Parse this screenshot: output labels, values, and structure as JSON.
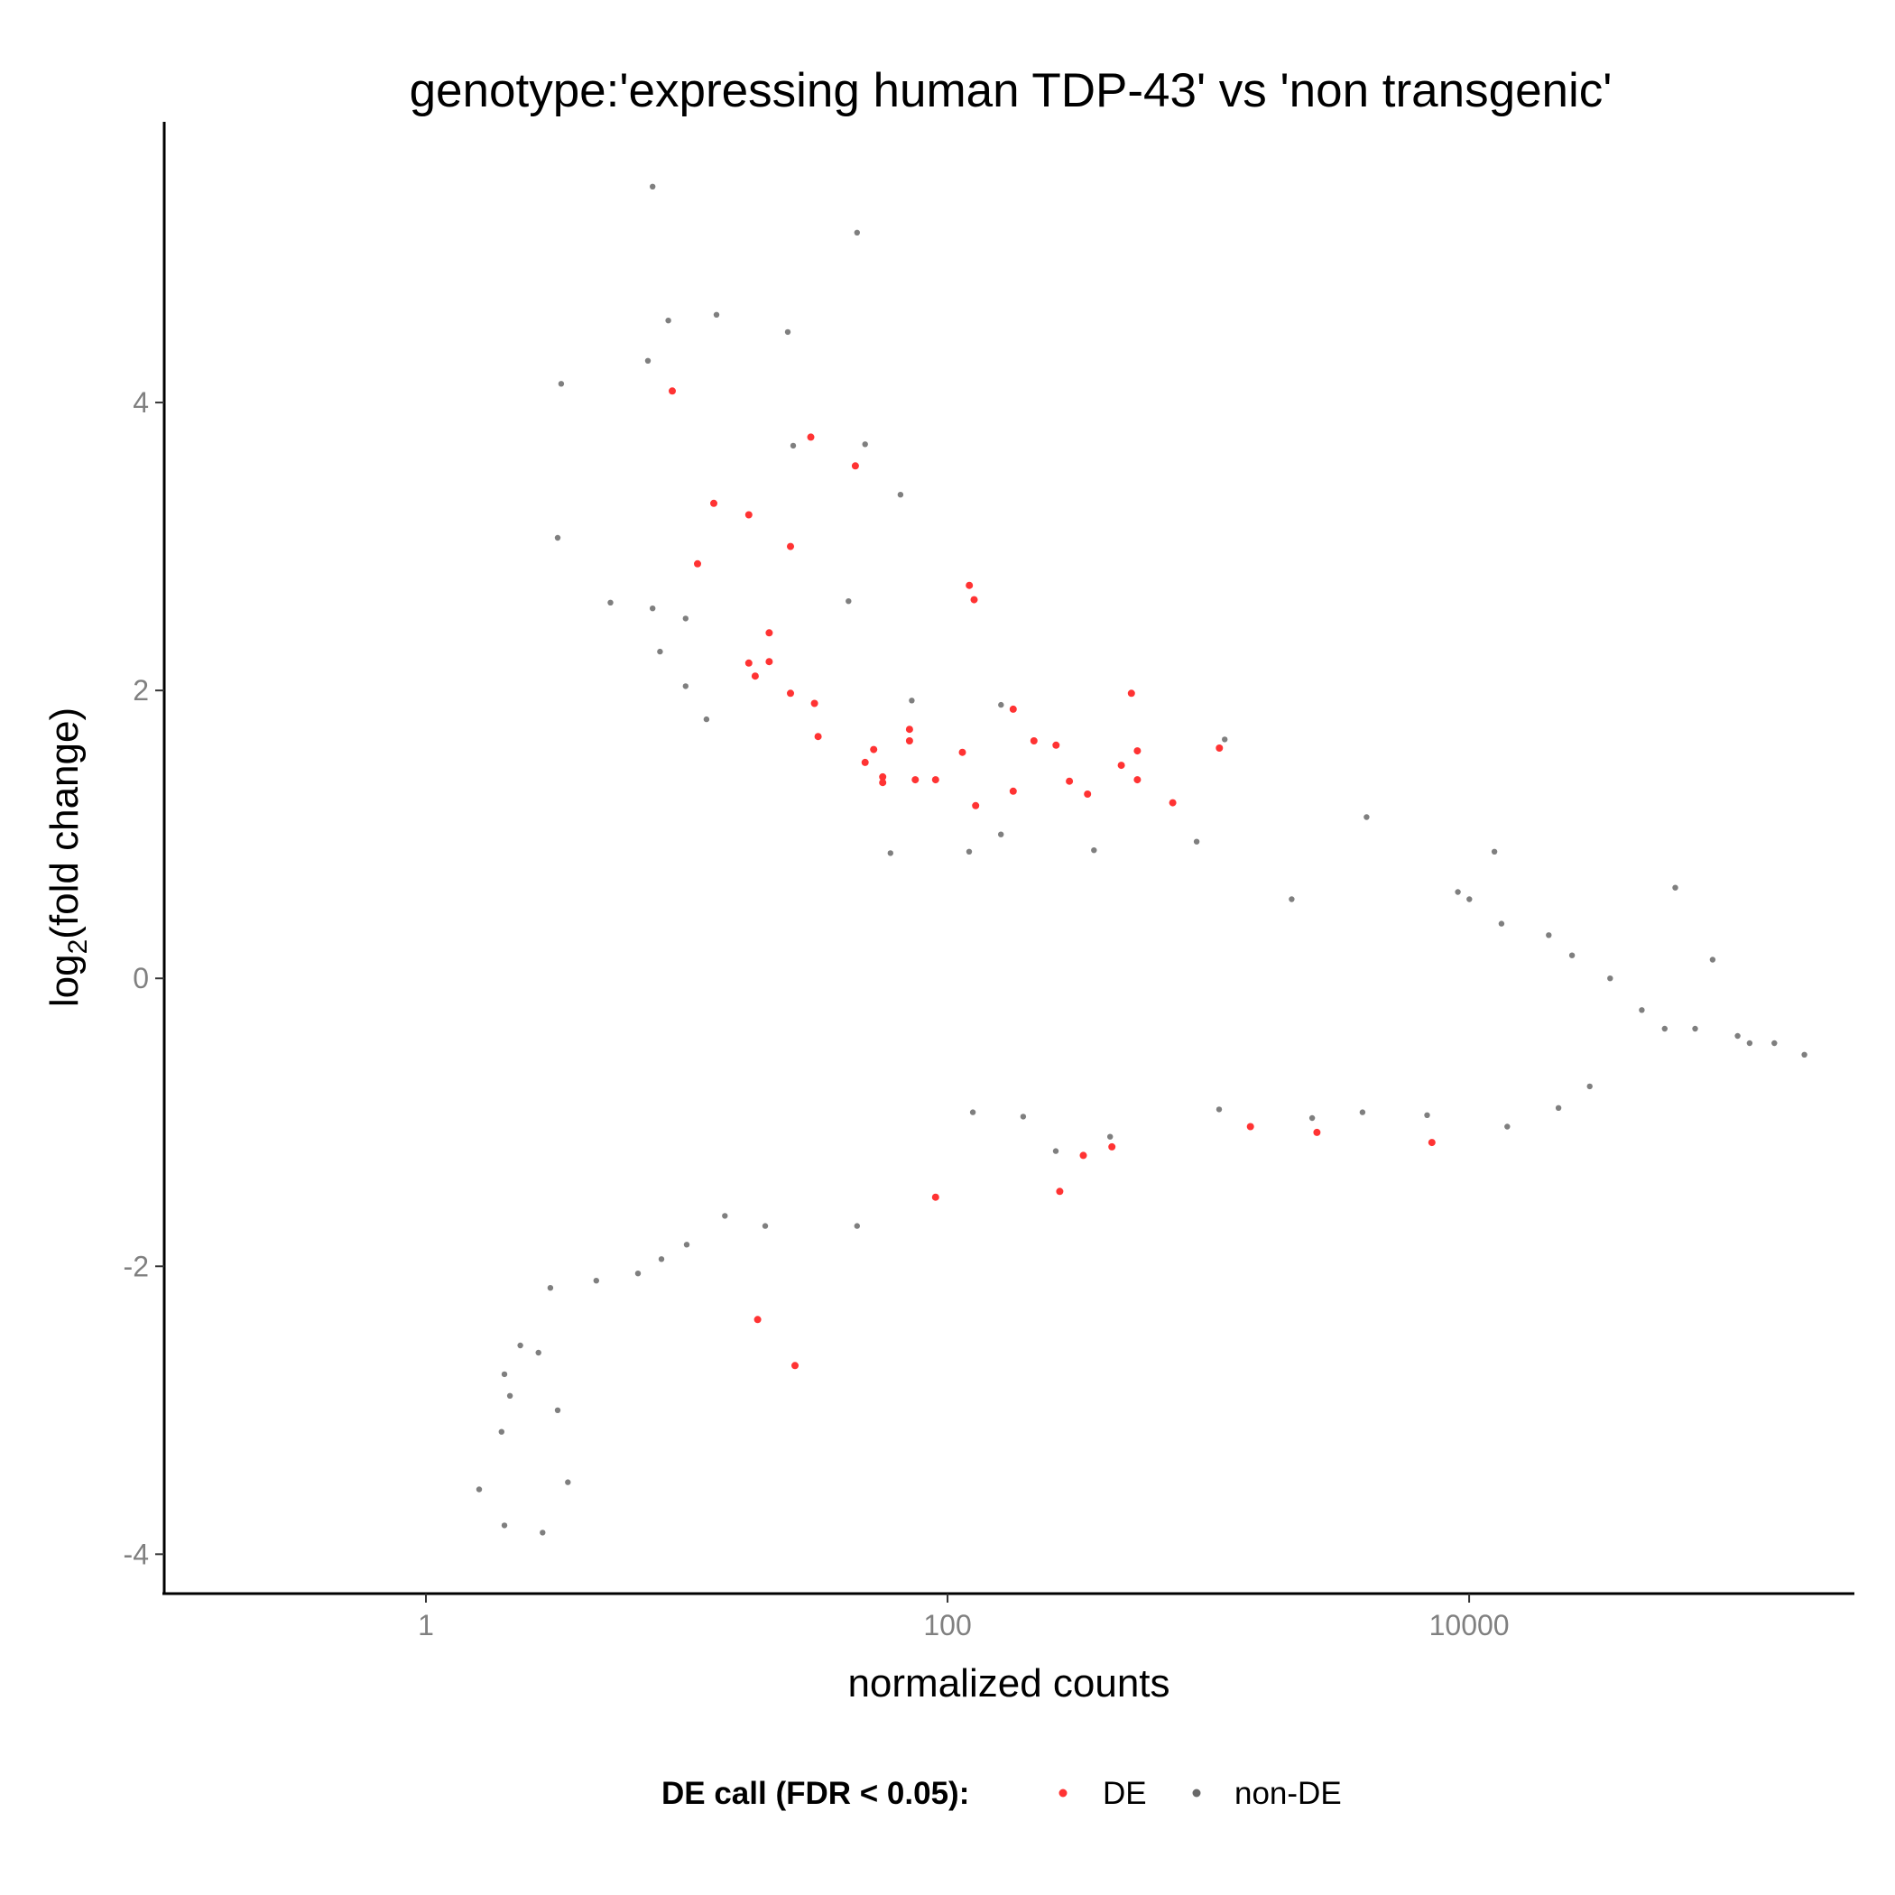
{
  "chart_data": {
    "type": "scatter",
    "title": "genotype:'expressing human TDP-43' vs 'non transgenic'",
    "xlabel": "normalized counts",
    "ylabel": "log2(fold change)",
    "x_scale": "log10",
    "xlim": [
      0.1,
      300000
    ],
    "ylim": [
      -4.28,
      5.95
    ],
    "x_ticks": [
      1,
      100,
      10000
    ],
    "x_tick_labels": [
      "1",
      "100",
      "10000"
    ],
    "y_ticks": [
      -4,
      -2,
      0,
      2,
      4
    ],
    "y_tick_labels": [
      "-4",
      "-2",
      "0",
      "2",
      "4"
    ],
    "grid": false,
    "legend": {
      "title": "DE call (FDR < 0.05):",
      "position": "bottom",
      "entries": [
        "DE",
        "non-DE"
      ]
    },
    "series": [
      {
        "name": "DE",
        "color": "#ff3333",
        "points": [
          [
            8.8,
            4.08
          ],
          [
            12.7,
            3.3
          ],
          [
            11.0,
            2.88
          ],
          [
            17.3,
            3.22
          ],
          [
            25.0,
            3.0
          ],
          [
            29.9,
            3.76
          ],
          [
            44.3,
            3.56
          ],
          [
            20.7,
            2.4
          ],
          [
            17.3,
            2.19
          ],
          [
            18.3,
            2.1
          ],
          [
            20.7,
            2.2
          ],
          [
            25.0,
            1.98
          ],
          [
            30.9,
            1.91
          ],
          [
            31.9,
            1.68
          ],
          [
            48.3,
            1.5
          ],
          [
            52.1,
            1.59
          ],
          [
            56.4,
            1.4
          ],
          [
            56.4,
            1.36
          ],
          [
            71.5,
            1.73
          ],
          [
            71.5,
            1.65
          ],
          [
            75.2,
            1.38
          ],
          [
            90.0,
            1.38
          ],
          [
            114.0,
            1.57
          ],
          [
            121.2,
            2.73
          ],
          [
            126.4,
            2.63
          ],
          [
            128.2,
            1.2
          ],
          [
            178.5,
            1.87
          ],
          [
            178.5,
            1.3
          ],
          [
            214.4,
            1.65
          ],
          [
            260.6,
            1.62
          ],
          [
            293.2,
            1.37
          ],
          [
            344.3,
            1.28
          ],
          [
            463.6,
            1.48
          ],
          [
            506.8,
            1.98
          ],
          [
            534.3,
            1.58
          ],
          [
            534.3,
            1.38
          ],
          [
            730.1,
            1.22
          ],
          [
            1102.0,
            1.6
          ],
          [
            1450.3,
            -1.03
          ],
          [
            2607.6,
            -1.07
          ],
          [
            7197.3,
            -1.14
          ],
          [
            90.0,
            -1.52
          ],
          [
            269.3,
            -1.48
          ],
          [
            331.5,
            -1.23
          ],
          [
            426.8,
            -1.17
          ],
          [
            18.7,
            -2.37
          ],
          [
            26.0,
            -2.69
          ]
        ]
      },
      {
        "name": "non-DE",
        "color": "#696969",
        "points": [
          [
            7.4,
            5.5
          ],
          [
            45.0,
            5.18
          ],
          [
            8.5,
            4.57
          ],
          [
            13.0,
            4.61
          ],
          [
            24.4,
            4.49
          ],
          [
            7.1,
            4.29
          ],
          [
            3.3,
            4.13
          ],
          [
            25.6,
            3.7
          ],
          [
            48.3,
            3.71
          ],
          [
            66.0,
            3.36
          ],
          [
            3.2,
            3.06
          ],
          [
            5.1,
            2.61
          ],
          [
            7.9,
            2.27
          ],
          [
            9.9,
            2.03
          ],
          [
            11.9,
            1.8
          ],
          [
            9.9,
            2.5
          ],
          [
            7.4,
            2.57
          ],
          [
            41.7,
            2.62
          ],
          [
            72.9,
            1.93
          ],
          [
            160.3,
            1.9
          ],
          [
            1155.0,
            1.66
          ],
          [
            160.2,
            1.0
          ],
          [
            60.4,
            0.87
          ],
          [
            121.0,
            0.88
          ],
          [
            364.1,
            0.89
          ],
          [
            902.0,
            0.95
          ],
          [
            2086.5,
            0.55
          ],
          [
            4043.0,
            1.12
          ],
          [
            9052.0,
            0.6
          ],
          [
            10020.0,
            0.55
          ],
          [
            12500.0,
            0.88
          ],
          [
            13300.0,
            0.38
          ],
          [
            20200.0,
            0.3
          ],
          [
            24800.0,
            0.16
          ],
          [
            34700.0,
            0.0
          ],
          [
            61700.0,
            0.63
          ],
          [
            85800.0,
            0.13
          ],
          [
            45900.0,
            -0.22
          ],
          [
            56200.0,
            -0.35
          ],
          [
            73500.0,
            -0.35
          ],
          [
            107000.0,
            -0.4
          ],
          [
            119000.0,
            -0.45
          ],
          [
            148000.0,
            -0.45
          ],
          [
            193000.0,
            -0.53
          ],
          [
            29000.0,
            -0.75
          ],
          [
            22000.0,
            -0.9
          ],
          [
            14000.0,
            -1.03
          ],
          [
            6900.0,
            -0.95
          ],
          [
            3900.0,
            -0.93
          ],
          [
            2500.0,
            -0.97
          ],
          [
            1100.0,
            -0.91
          ],
          [
            420.0,
            -1.1
          ],
          [
            260.0,
            -1.2
          ],
          [
            195.0,
            -0.96
          ],
          [
            125.0,
            -0.93
          ],
          [
            45.0,
            -1.72
          ],
          [
            20.0,
            -1.72
          ],
          [
            14.0,
            -1.65
          ],
          [
            10.0,
            -1.85
          ],
          [
            8.0,
            -1.95
          ],
          [
            6.5,
            -2.05
          ],
          [
            4.5,
            -2.1
          ],
          [
            3.0,
            -2.15
          ],
          [
            2.7,
            -2.6
          ],
          [
            2.3,
            -2.55
          ],
          [
            2.0,
            -2.75
          ],
          [
            3.2,
            -3.0
          ],
          [
            2.1,
            -2.9
          ],
          [
            1.95,
            -3.15
          ],
          [
            3.5,
            -3.5
          ],
          [
            2.8,
            -3.85
          ],
          [
            2.0,
            -3.8
          ],
          [
            1.6,
            -3.55
          ]
        ]
      }
    ]
  }
}
